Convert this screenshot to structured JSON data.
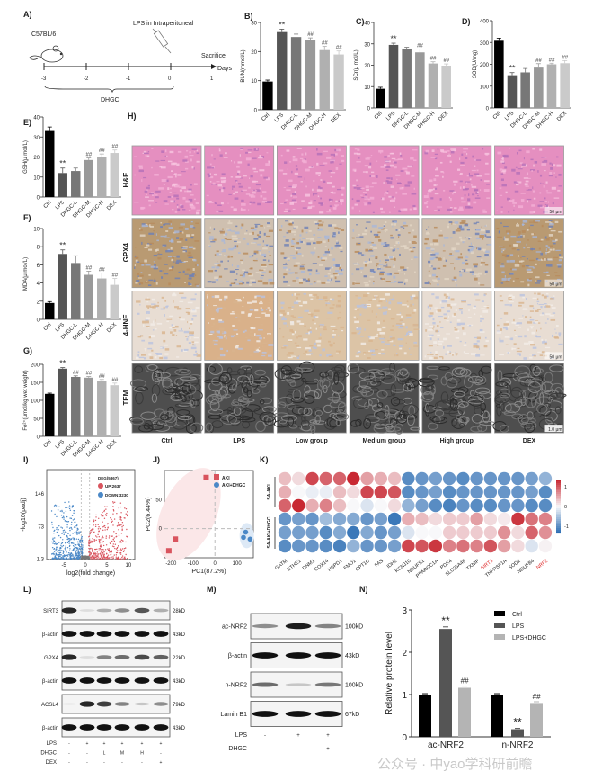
{
  "panels": {
    "A": {
      "label": "A)",
      "strain": "C57BL/6",
      "injection": "LPS in Intraperitoneal",
      "endpoint": "Sacrifice",
      "axis_label": "Days",
      "ticks": [
        "-3",
        "-2",
        "-1",
        "0",
        "1"
      ],
      "bracket_label": "DHGC",
      "icons": [
        "mouse-icon",
        "syringe-icon"
      ]
    },
    "H": {
      "label": "H)",
      "rows": [
        "H&E",
        "GPX4",
        "4-HNE",
        "TEM"
      ],
      "columns": [
        "Ctrl",
        "LPS",
        "Low group",
        "Medium group",
        "High group",
        "DEX"
      ],
      "scale_bars": [
        "50 μm",
        "50 μm",
        "50 μm",
        "1.0 μm"
      ]
    },
    "I": {
      "label": "I)",
      "legend_title": "DEG(5867)",
      "up": "UP:2637",
      "down": "DOWN:3230",
      "xlabel": "log2(fold change)",
      "ylabel": "-log10(padj)",
      "xticks": [
        "-5",
        "0",
        "5",
        "10"
      ],
      "yticks": [
        "1.3",
        "73",
        "146"
      ],
      "up_color": "#d9545e",
      "down_color": "#4a88c7"
    },
    "J": {
      "label": "J)",
      "xlabel": "PC1(87.2%)",
      "ylabel": "PC2(6.44%)",
      "xticks": [
        "-200",
        "-100",
        "0",
        "100"
      ],
      "yticks": [
        "0",
        "50"
      ],
      "series": [
        {
          "name": "AKI",
          "color": "#d9545e",
          "points": [
            [
              -40,
              88
            ],
            [
              -180,
              -18
            ],
            [
              -210,
              -38
            ]
          ]
        },
        {
          "name": "AKI+DHGC",
          "color": "#4a88c7",
          "points": [
            [
              140,
              -6
            ],
            [
              130,
              -15
            ],
            [
              160,
              -18
            ]
          ]
        }
      ]
    },
    "K": {
      "label": "K)",
      "groups": [
        "SA-AKI",
        "SA-AKI+DHGC"
      ],
      "colorbar_ticks": [
        "1",
        "0",
        "-1"
      ],
      "genes": [
        "GATM",
        "ETHE1",
        "DNM1",
        "COX14",
        "HSPD1",
        "FMO1",
        "CPT1C",
        "FAS",
        "IDH2",
        "KCNJ10",
        "NDUFS1",
        "PPARGC1A",
        "PDK4",
        "SLC25A48",
        "TXNIP",
        "SIRT3",
        "TNFRSF1A",
        "SOD2",
        "NDUFB4",
        "NRF2"
      ],
      "highlighted_genes": [
        "SIRT3",
        "NRF2"
      ],
      "values": [
        [
          0.4,
          0.2,
          1.2,
          1.0,
          1.0,
          1.4,
          0.6,
          0.5,
          0.4,
          -1.1,
          -1.0,
          -0.9,
          -1.0,
          -1.1,
          -1.0,
          -1.0,
          -1.0,
          -1.0,
          -0.9,
          -0.7
        ],
        [
          0.5,
          0,
          -0.1,
          -0.1,
          0.4,
          0.2,
          1.2,
          1.2,
          1.1,
          -1.1,
          -1.0,
          -0.9,
          -1.1,
          -1.0,
          -1.0,
          -1.0,
          -1.0,
          -1.0,
          -0.9,
          -1.1
        ],
        [
          1.0,
          1.4,
          0.5,
          0.8,
          0.4,
          0,
          -0.2,
          0,
          0.2,
          -0.7,
          -0.9,
          -1.1,
          -1.2,
          -1.0,
          -1.1,
          -1.1,
          -1.0,
          -1.0,
          -1.1,
          -1.1
        ],
        [
          -1.0,
          -0.9,
          -1.0,
          -0.6,
          -0.8,
          -0.8,
          -1.0,
          -0.9,
          -1.3,
          0.5,
          0.4,
          0.2,
          0.3,
          0.3,
          0.6,
          0.2,
          0.1,
          1.3,
          0.9,
          0.8
        ],
        [
          -0.9,
          -0.9,
          -0.9,
          -1.1,
          -0.8,
          -1.3,
          -0.8,
          -1.0,
          -0.9,
          -0.2,
          0,
          0,
          0.3,
          0.3,
          0.3,
          0.3,
          0.7,
          0.2,
          1.0,
          0.7
        ],
        [
          -1.1,
          -1.0,
          -1.0,
          -1.1,
          -1.2,
          -0.7,
          -1.0,
          -1.0,
          -0.9,
          1.2,
          1.1,
          1.3,
          0.8,
          0.9,
          0.8,
          1.1,
          0.6,
          0.2,
          -0.2,
          0.05
        ]
      ]
    },
    "L": {
      "label": "L)",
      "blots": [
        {
          "name": "SIRT3",
          "size": "28kD",
          "bands": [
            0.9,
            0.1,
            0.3,
            0.45,
            0.7,
            0.3
          ]
        },
        {
          "name": "β-actin",
          "size": "43kD",
          "bands": [
            1,
            1,
            1,
            1,
            1,
            1
          ]
        },
        {
          "name": "GPX4",
          "size": "22kD",
          "bands": [
            0.9,
            0.1,
            0.5,
            0.6,
            0.75,
            0.65
          ]
        },
        {
          "name": "β-actin",
          "size": "43kD",
          "bands": [
            1,
            1,
            1,
            1,
            1,
            1
          ]
        },
        {
          "name": "ACSL4",
          "size": "79kD",
          "bands": [
            0.05,
            0.9,
            0.8,
            0.5,
            0.2,
            0.45
          ]
        },
        {
          "name": "β-actin",
          "size": "43kD",
          "bands": [
            1,
            1,
            1,
            1,
            1,
            1
          ]
        }
      ],
      "conditions": [
        {
          "name": "LPS",
          "values": [
            "-",
            "+",
            "+",
            "+",
            "+",
            "+"
          ]
        },
        {
          "name": "DHGC",
          "values": [
            "-",
            "-",
            "L",
            "M",
            "H",
            "-"
          ]
        },
        {
          "name": "DEX",
          "values": [
            "-",
            "-",
            "-",
            "-",
            "-",
            "+"
          ]
        }
      ]
    },
    "M": {
      "label": "M)",
      "blots": [
        {
          "name": "ac-NRF2",
          "size": "100kD",
          "bands": [
            0.45,
            0.95,
            0.5
          ]
        },
        {
          "name": "β-actin",
          "size": "43kD",
          "bands": [
            1,
            1,
            1
          ]
        },
        {
          "name": "n-NRF2",
          "size": "100kD",
          "bands": [
            0.6,
            0.2,
            0.55
          ]
        },
        {
          "name": "Lamin B1",
          "size": "67kD",
          "bands": [
            1,
            1,
            1
          ]
        }
      ],
      "conditions": [
        {
          "name": "LPS",
          "values": [
            "-",
            "+",
            "+"
          ]
        },
        {
          "name": "DHGC",
          "values": [
            "-",
            "-",
            "+"
          ]
        }
      ]
    }
  },
  "chart_data": [
    {
      "panel": "B)",
      "type": "bar",
      "ylabel": "BUN(mmol/L)",
      "categories": [
        "Ctrl",
        "LPS",
        "DHGC-L",
        "DHGC-M",
        "DHGC-H",
        "DEX"
      ],
      "values": [
        9.7,
        26.7,
        25,
        24,
        20.5,
        19
      ],
      "errors": [
        0.5,
        1,
        1,
        0.7,
        1.3,
        1.2
      ],
      "significance": [
        "",
        "**",
        "",
        "##",
        "##",
        "##"
      ],
      "ylim": [
        0,
        30
      ],
      "yticks": [
        0,
        10,
        20,
        30
      ]
    },
    {
      "panel": "C)",
      "type": "bar",
      "ylabel": "SCr(μ mol/L)",
      "categories": [
        "Ctrl",
        "LPS",
        "DHGC-L",
        "DHGC-M",
        "DHGC-H",
        "DEX"
      ],
      "values": [
        9,
        29.5,
        27.8,
        26,
        20.8,
        19.8
      ],
      "errors": [
        0.7,
        0.8,
        0.6,
        1.6,
        0.8,
        0.8
      ],
      "significance": [
        "",
        "**",
        "",
        "##",
        "##",
        "##"
      ],
      "ylim": [
        0,
        40
      ],
      "yticks": [
        0,
        10,
        20,
        30,
        40
      ]
    },
    {
      "panel": "D)",
      "type": "bar",
      "ylabel": "SOD(U/mg)",
      "categories": [
        "Ctrl",
        "LPS",
        "DHGC-L",
        "DHGC-M",
        "DHGC-H",
        "DEX"
      ],
      "values": [
        308,
        150,
        163,
        185,
        200,
        205
      ],
      "errors": [
        12,
        12,
        18,
        18,
        5,
        12
      ],
      "significance": [
        "",
        "**",
        "",
        "##",
        "##",
        "##"
      ],
      "ylim": [
        0,
        400
      ],
      "yticks": [
        0,
        100,
        200,
        300,
        400
      ]
    },
    {
      "panel": "E)",
      "type": "bar",
      "ylabel": "GSH(μ mol/L)",
      "categories": [
        "Ctrl",
        "LPS",
        "DHGC-L",
        "DHGC-M",
        "DHGC-H",
        "DEX"
      ],
      "values": [
        33,
        12,
        13,
        18.5,
        20,
        22
      ],
      "errors": [
        2,
        2.5,
        1.5,
        1,
        1.5,
        1.5
      ],
      "significance": [
        "",
        "**",
        "",
        "##",
        "##",
        "##"
      ],
      "ylim": [
        0,
        40
      ],
      "yticks": [
        0,
        10,
        20,
        30,
        40
      ]
    },
    {
      "panel": "F)",
      "type": "bar",
      "ylabel": "MDA(μ mol/L)",
      "categories": [
        "Ctrl",
        "LPS",
        "DHGC-L",
        "DHGC-M",
        "DHGC-H",
        "DEX"
      ],
      "values": [
        1.8,
        7.2,
        6.2,
        4.9,
        4.5,
        3.8
      ],
      "errors": [
        0.15,
        0.45,
        0.8,
        0.4,
        0.6,
        0.7
      ],
      "significance": [
        "",
        "**",
        "",
        "##",
        "##",
        "##"
      ],
      "ylim": [
        0,
        10
      ],
      "yticks": [
        0,
        2,
        4,
        6,
        8,
        10
      ]
    },
    {
      "panel": "G)",
      "type": "bar",
      "ylabel": "Fe²⁺(μmol/kg wet weight)",
      "categories": [
        "Ctrl",
        "LPS",
        "DHGC-L",
        "DHGC-M",
        "DHGC-H",
        "DEX"
      ],
      "values": [
        118,
        188,
        165,
        163,
        155,
        142
      ],
      "errors": [
        2,
        3,
        3,
        3,
        3,
        6
      ],
      "significance": [
        "",
        "**",
        "##",
        "##",
        "##",
        "##"
      ],
      "ylim": [
        0,
        200
      ],
      "yticks": [
        0,
        50,
        100,
        150,
        200
      ]
    },
    {
      "panel": "N)",
      "type": "bar",
      "ylabel": "Relative protein level",
      "categories": [
        "ac-NRF2",
        "n-NRF2"
      ],
      "series": [
        {
          "name": "Ctrl",
          "color": "#000000",
          "values": [
            1,
            1
          ],
          "errors": [
            0.02,
            0.02
          ],
          "significance": [
            "",
            ""
          ]
        },
        {
          "name": "LPS",
          "color": "#555555",
          "values": [
            2.55,
            0.18
          ],
          "errors": [
            0.05,
            0.02
          ],
          "significance": [
            "**",
            "**"
          ]
        },
        {
          "name": "LPS+DHGC",
          "color": "#b4b4b4",
          "values": [
            1.16,
            0.8
          ],
          "errors": [
            0.04,
            0.03
          ],
          "significance": [
            "##",
            "##"
          ]
        }
      ],
      "ylim": [
        0,
        3
      ],
      "yticks": [
        0,
        1,
        2,
        3
      ],
      "legend": "top-right"
    }
  ],
  "bar_colors": [
    "#000000",
    "#555555",
    "#777777",
    "#999999",
    "#b0b0b0",
    "#cacaca"
  ],
  "watermark": "公众号 · 中yao学科研前瞻"
}
